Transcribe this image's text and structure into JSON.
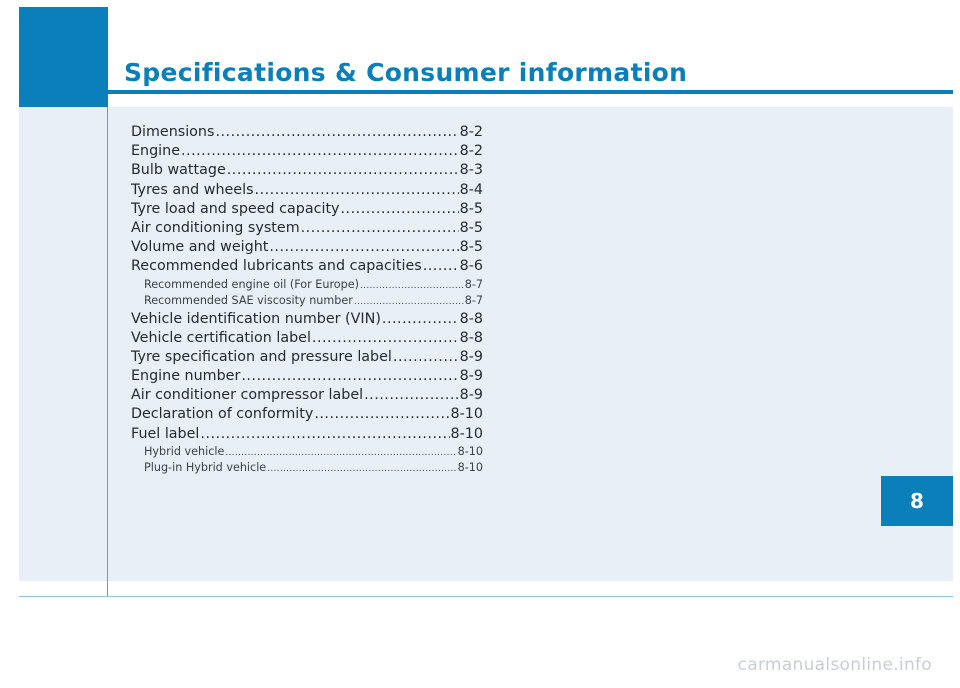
{
  "header": {
    "title": "Specifications & Consumer information"
  },
  "chapter_tab": "8",
  "toc": {
    "entries": [
      {
        "label": "Dimensions",
        "page": "8-2",
        "level": 1
      },
      {
        "label": "Engine",
        "page": "8-2",
        "level": 1
      },
      {
        "label": "Bulb wattage",
        "page": "8-3",
        "level": 1
      },
      {
        "label": "Tyres and wheels",
        "page": "8-4",
        "level": 1
      },
      {
        "label": "Tyre load and speed capacity",
        "page": "8-5",
        "level": 1
      },
      {
        "label": "Air conditioning system",
        "page": "8-5",
        "level": 1
      },
      {
        "label": "Volume and weight",
        "page": "8-5",
        "level": 1
      },
      {
        "label": "Recommended lubricants and capacities",
        "page": "8-6",
        "level": 1
      },
      {
        "label": "Recommended engine oil (For Europe)",
        "page": "8-7",
        "level": 2
      },
      {
        "label": "Recommended SAE viscosity number",
        "page": "8-7",
        "level": 2
      },
      {
        "label": "Vehicle identification number (VIN)",
        "page": "8-8",
        "level": 1
      },
      {
        "label": "Vehicle certification label",
        "page": "8-8",
        "level": 1
      },
      {
        "label": "Tyre specification and pressure label",
        "page": "8-9",
        "level": 1
      },
      {
        "label": "Engine number",
        "page": "8-9",
        "level": 1
      },
      {
        "label": "Air conditioner compressor label",
        "page": "8-9",
        "level": 1
      },
      {
        "label": "Declaration of conformity",
        "page": "8-10",
        "level": 1
      },
      {
        "label": "Fuel label",
        "page": "8-10",
        "level": 1
      },
      {
        "label": "Hybrid vehicle",
        "page": "8-10",
        "level": 2
      },
      {
        "label": "Plug-in Hybrid vehicle",
        "page": "8-10",
        "level": 2
      }
    ]
  },
  "watermark": "carmanualsonline.info",
  "colors": {
    "accent": "#0b7fba",
    "panel": "#e9eff6",
    "text": "#262a30"
  }
}
